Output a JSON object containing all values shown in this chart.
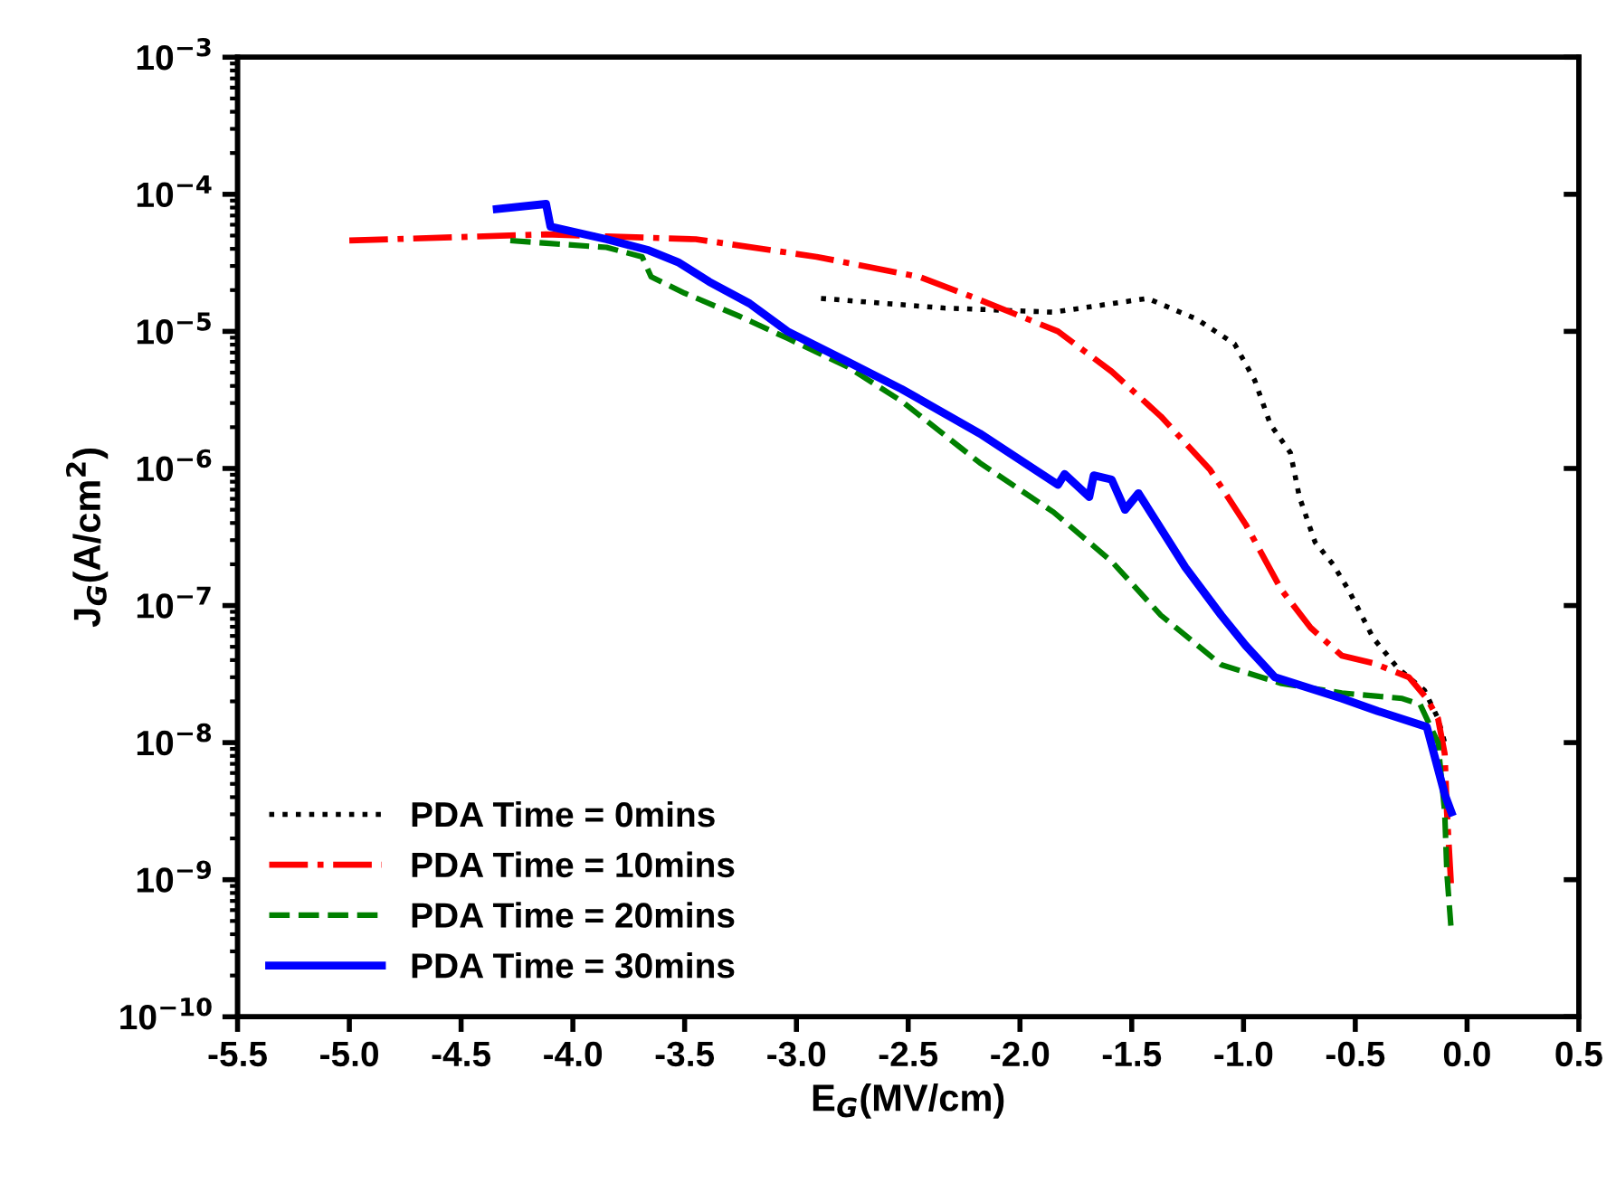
{
  "chart_data": {
    "type": "line",
    "xlabel": "E$_{G}$(MV/cm)",
    "ylabel": "J$_{G}$(A/cm$^{2}$)",
    "log": "y",
    "grid": false,
    "legend": "bottom left",
    "marker": "none",
    "xlim": [
      -5.5,
      0.5
    ],
    "ylim": [
      1e-10,
      0.001
    ],
    "xticks": [
      {
        "value": -5.5,
        "label": "-5.5"
      },
      {
        "value": -5.0,
        "label": "-5.0"
      },
      {
        "value": -4.5,
        "label": "-4.5"
      },
      {
        "value": -4.0,
        "label": "-4.0"
      },
      {
        "value": -3.5,
        "label": "-3.5"
      },
      {
        "value": -3.0,
        "label": "-3.0"
      },
      {
        "value": -2.5,
        "label": "-2.5"
      },
      {
        "value": -2.0,
        "label": "-2.0"
      },
      {
        "value": -1.5,
        "label": "-1.5"
      },
      {
        "value": -1.0,
        "label": "-1.0"
      },
      {
        "value": -0.5,
        "label": "-0.5"
      },
      {
        "value": 0.0,
        "label": "0.0"
      },
      {
        "value": 0.5,
        "label": "0.5"
      }
    ],
    "yticks": [
      {
        "value": 1e-10,
        "label": "10$^{−10}$"
      },
      {
        "value": 1e-09,
        "label": "10$^{−9}$"
      },
      {
        "value": 1e-08,
        "label": "10$^{−8}$"
      },
      {
        "value": 1e-07,
        "label": "10$^{−7}$"
      },
      {
        "value": 1e-06,
        "label": "10$^{−6}$"
      },
      {
        "value": 1e-05,
        "label": "10$^{−5}$"
      },
      {
        "value": 0.0001,
        "label": "10$^{−4}$"
      },
      {
        "value": 0.001,
        "label": "10$^{−3}$"
      }
    ],
    "series": [
      {
        "name": "PDA Time = 0mins",
        "color": "#000000",
        "line_style": "dotted",
        "x": [
          -2.89,
          -2.34,
          -1.85,
          -1.43,
          -1.21,
          -1.04,
          -0.95,
          -0.88,
          -0.79,
          -0.75,
          -0.68,
          -0.6,
          -0.53,
          -0.42,
          -0.31,
          -0.19,
          -0.13,
          -0.1
        ],
        "values": [
          1.74e-05,
          1.48e-05,
          1.38e-05,
          1.74e-05,
          1.23e-05,
          8.1e-06,
          4.4e-06,
          2.1e-06,
          1.3e-06,
          6.2e-07,
          2.9e-07,
          2e-07,
          1.3e-07,
          5.8e-08,
          3.5e-08,
          2.4e-08,
          1.5e-08,
          1e-08
        ]
      },
      {
        "name": "PDA Time = 10mins",
        "color": "#ff0000",
        "line_style": "dashdot",
        "x": [
          -5.0,
          -4.12,
          -3.45,
          -2.91,
          -2.45,
          -2.18,
          -1.83,
          -1.59,
          -1.37,
          -1.15,
          -0.99,
          -0.83,
          -0.7,
          -0.56,
          -0.42,
          -0.26,
          -0.18,
          -0.13,
          -0.1,
          -0.09,
          -0.07
        ],
        "values": [
          4.6e-05,
          5.1e-05,
          4.7e-05,
          3.5e-05,
          2.5e-05,
          1.7e-05,
          1e-05,
          5.1e-06,
          2.4e-06,
          9.8e-07,
          3.9e-07,
          1.3e-07,
          6.9e-08,
          4.3e-08,
          3.8e-08,
          3e-08,
          2.1e-08,
          1.5e-08,
          8.3e-09,
          3.1e-09,
          8.3e-10
        ]
      },
      {
        "name": "PDA Time = 20mins",
        "color": "#008000",
        "line_style": "dashed",
        "x": [
          -4.28,
          -4.12,
          -3.85,
          -3.69,
          -3.65,
          -3.5,
          -3.26,
          -3.04,
          -2.77,
          -2.53,
          -2.18,
          -1.85,
          -1.59,
          -1.37,
          -1.1,
          -0.83,
          -0.56,
          -0.29,
          -0.21,
          -0.13,
          -0.1,
          -0.09,
          -0.07
        ],
        "values": [
          4.6e-05,
          4.4e-05,
          4.1e-05,
          3.5e-05,
          2.5e-05,
          1.9e-05,
          1.3e-05,
          8.9e-06,
          5.5e-06,
          3.1e-06,
          1.1e-06,
          4.8e-07,
          2.1e-07,
          8.5e-08,
          3.7e-08,
          2.7e-08,
          2.3e-08,
          2.1e-08,
          1.9e-08,
          1e-08,
          3.1e-09,
          1.1e-09,
          4.1e-10
        ]
      },
      {
        "name": "PDA Time = 30mins",
        "color": "#0000ff",
        "line_style": "solid",
        "x": [
          -4.34,
          -4.12,
          -4.1,
          -3.85,
          -3.66,
          -3.53,
          -3.39,
          -3.21,
          -3.04,
          -2.77,
          -2.53,
          -2.18,
          -1.83,
          -1.8,
          -1.69,
          -1.67,
          -1.59,
          -1.53,
          -1.47,
          -1.26,
          -1.1,
          -0.99,
          -0.86,
          -0.56,
          -0.4,
          -0.18,
          -0.1,
          -0.07
        ],
        "values": [
          7.8e-05,
          8.5e-05,
          5.8e-05,
          4.7e-05,
          3.9e-05,
          3.2e-05,
          2.3e-05,
          1.6e-05,
          1e-05,
          6e-06,
          3.8e-06,
          1.8e-06,
          7.6e-07,
          9.1e-07,
          6.2e-07,
          8.9e-07,
          8.3e-07,
          5e-07,
          6.6e-07,
          1.9e-07,
          8.5e-08,
          5.1e-08,
          3e-08,
          2.1e-08,
          1.7e-08,
          1.3e-08,
          4.2e-09,
          3.1e-09
        ]
      }
    ]
  }
}
